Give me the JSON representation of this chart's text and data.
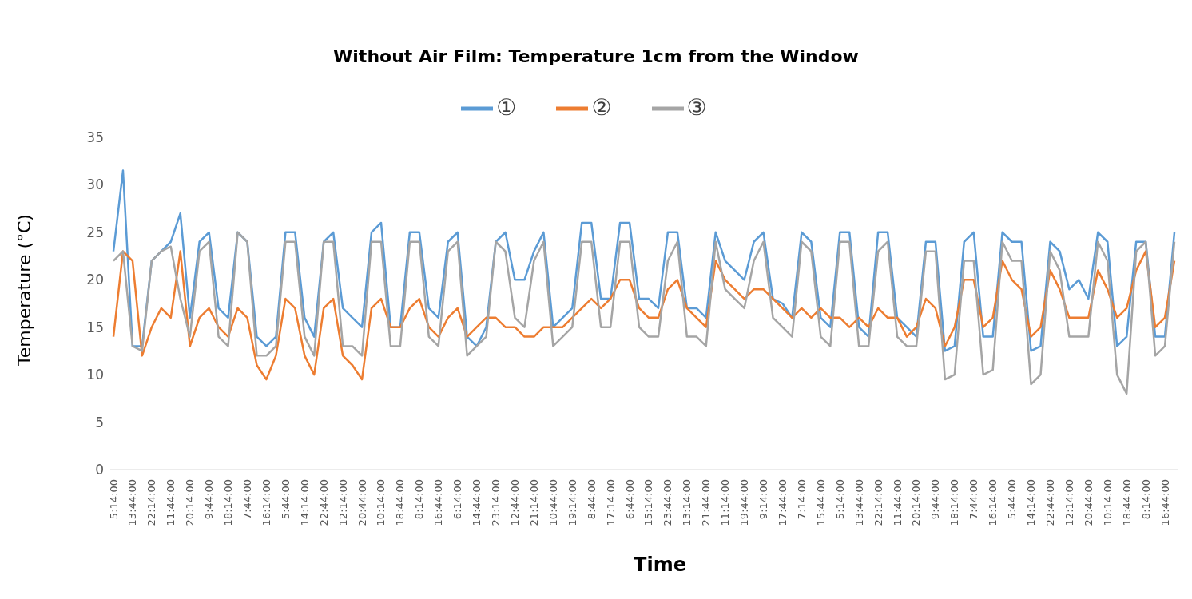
{
  "chart_data": {
    "type": "line",
    "title": "Without Air Film: Temperature 1cm from the Window",
    "xlabel": "Time",
    "ylabel": "Temperature (°C)",
    "categories": [
      "5:14:00",
      null,
      "13:44:00",
      null,
      "22:14:00",
      null,
      "11:44:00",
      null,
      "20:14:00",
      null,
      "9:44:00",
      null,
      "18:14:00",
      null,
      "7:44:00",
      null,
      "16:14:00",
      null,
      "5:44:00",
      null,
      "14:14:00",
      null,
      "22:44:00",
      null,
      "12:14:00",
      null,
      "20:44:00",
      null,
      "10:14:00",
      null,
      "18:44:00",
      null,
      "8:14:00",
      null,
      "16:44:00",
      null,
      "6:14:00",
      null,
      "14:44:00",
      null,
      "23:14:00",
      null,
      "12:44:00",
      null,
      "21:14:00",
      null,
      "10:44:00",
      null,
      "19:14:00",
      null,
      "8:44:00",
      null,
      "17:14:00",
      null,
      "6:44:00",
      null,
      "15:14:00",
      null,
      "23:44:00",
      null,
      "13:14:00",
      null,
      "21:44:00",
      null,
      "11:14:00",
      null,
      "19:44:00",
      null,
      "9:14:00",
      null,
      "17:44:00",
      null,
      "7:14:00",
      null,
      "15:44:00",
      null,
      "5:14:00",
      null,
      "13:44:00",
      null,
      "22:14:00",
      null,
      "11:44:00",
      null,
      "20:14:00",
      null,
      "9:44:00",
      null,
      "18:14:00",
      null,
      "7:44:00",
      null,
      "16:14:00",
      null,
      "5:44:00",
      null,
      "14:14:00",
      null,
      "22:44:00",
      null,
      "12:14:00",
      null,
      "20:44:00",
      null,
      "10:14:00",
      null,
      "18:44:00",
      null,
      "8:14:00",
      null,
      "16:44:00",
      null
    ],
    "series": [
      {
        "name": "①",
        "color": "#5b9bd5",
        "values": [
          23,
          31.5,
          13,
          13,
          22,
          23,
          24,
          27,
          16,
          24,
          25,
          17,
          16,
          25,
          24,
          14,
          13,
          14,
          25,
          25,
          16,
          14,
          24,
          25,
          17,
          16,
          15,
          25,
          26,
          15,
          15,
          25,
          25,
          17,
          16,
          24,
          25,
          14,
          13,
          15,
          24,
          25,
          20,
          20,
          23,
          25,
          15,
          16,
          17,
          26,
          26,
          18,
          18,
          26,
          26,
          18,
          18,
          17,
          25,
          25,
          17,
          17,
          16,
          25,
          22,
          21,
          20,
          24,
          25,
          18,
          17.5,
          16,
          25,
          24,
          16,
          15,
          25,
          25,
          15,
          14,
          25,
          25,
          16,
          15,
          14,
          24,
          24,
          12.5,
          13,
          24,
          25,
          14,
          14,
          25,
          24,
          24,
          12.5,
          13,
          24,
          23,
          19,
          20,
          18,
          25,
          24,
          13,
          14,
          24,
          24,
          14,
          14,
          25
        ]
      },
      {
        "name": "②",
        "color": "#ed7d31",
        "values": [
          14,
          23,
          22,
          12,
          15,
          17,
          16,
          23,
          13,
          16,
          17,
          15,
          14,
          17,
          16,
          11,
          9.5,
          12,
          18,
          17,
          12,
          10,
          17,
          18,
          12,
          11,
          9.5,
          17,
          18,
          15,
          15,
          17,
          18,
          15,
          14,
          16,
          17,
          14,
          15,
          16,
          16,
          15,
          15,
          14,
          14,
          15,
          15,
          15,
          16,
          17,
          18,
          17,
          18,
          20,
          20,
          17,
          16,
          16,
          19,
          20,
          17,
          16,
          15,
          22,
          20,
          19,
          18,
          19,
          19,
          18,
          17,
          16,
          17,
          16,
          17,
          16,
          16,
          15,
          16,
          15,
          17,
          16,
          16,
          14,
          15,
          18,
          17,
          13,
          15,
          20,
          20,
          15,
          16,
          22,
          20,
          19,
          14,
          15,
          21,
          19,
          16,
          16,
          16,
          21,
          19,
          16,
          17,
          21,
          23,
          15,
          16,
          22
        ]
      },
      {
        "name": "③",
        "color": "#a5a5a5",
        "values": [
          22,
          23,
          13,
          12.5,
          22,
          23,
          23.5,
          18,
          14,
          23,
          24,
          14,
          13,
          25,
          24,
          12,
          12,
          13,
          24,
          24,
          14,
          12,
          24,
          24,
          13,
          13,
          12,
          24,
          24,
          13,
          13,
          24,
          24,
          14,
          13,
          23,
          24,
          12,
          13,
          14,
          24,
          23,
          16,
          15,
          22,
          24,
          13,
          14,
          15,
          24,
          24,
          15,
          15,
          24,
          24,
          15,
          14,
          14,
          22,
          24,
          14,
          14,
          13,
          24,
          19,
          18,
          17,
          22,
          24,
          16,
          15,
          14,
          24,
          23,
          14,
          13,
          24,
          24,
          13,
          13,
          23,
          24,
          14,
          13,
          13,
          23,
          23,
          9.5,
          10,
          22,
          22,
          10,
          10.5,
          24,
          22,
          22,
          9,
          10,
          23,
          21,
          14,
          14,
          14,
          24,
          22,
          10,
          8,
          23,
          24,
          12,
          13,
          24
        ]
      }
    ],
    "ylim": [
      0,
      35
    ],
    "yticks": [
      0,
      5,
      10,
      15,
      20,
      25,
      30,
      35
    ],
    "grid": false,
    "legend": "top",
    "marker": "none",
    "line_style": "solid"
  }
}
